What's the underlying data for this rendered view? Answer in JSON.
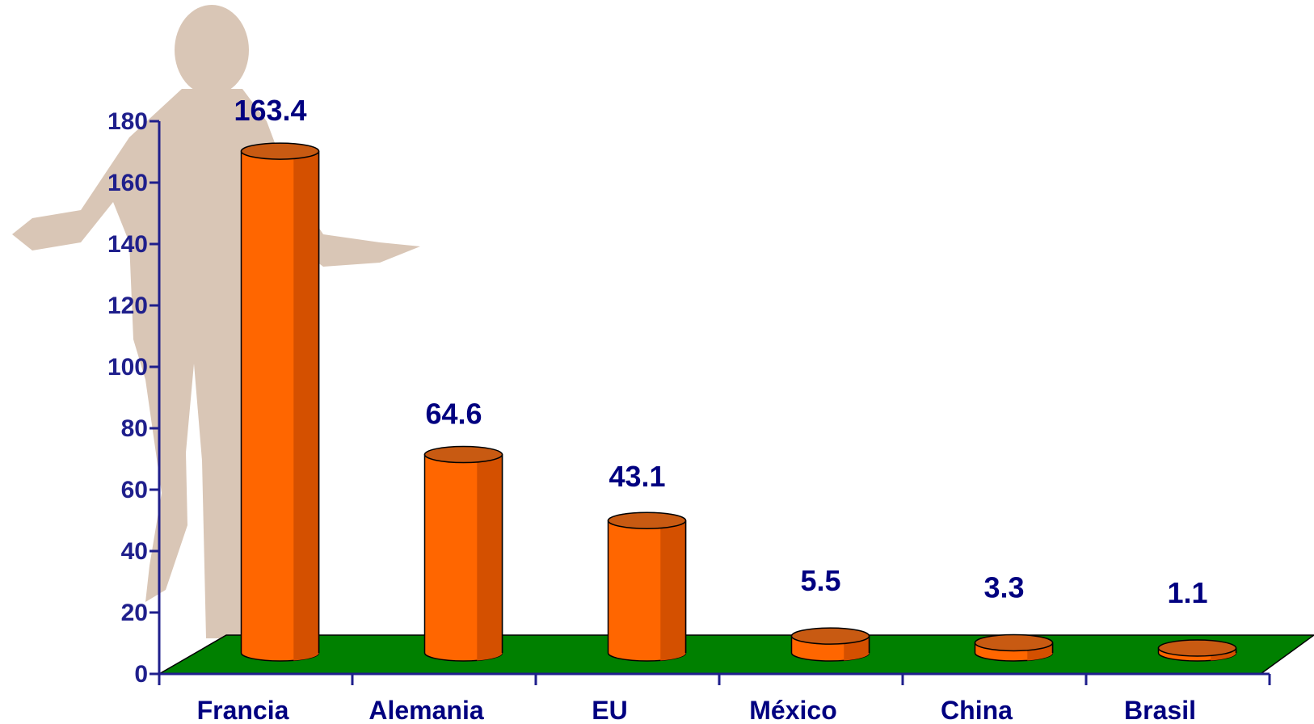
{
  "chart_data": {
    "type": "bar",
    "categories": [
      "Francia",
      "Alemania",
      "EU",
      "México",
      "China",
      "Brasil"
    ],
    "values": [
      163.4,
      64.6,
      43.1,
      5.5,
      3.3,
      1.1
    ],
    "data_labels": [
      "163.4",
      "64.6",
      "43.1",
      "5.5",
      "3.3",
      "1.1"
    ],
    "y_ticks": [
      "0",
      "20",
      "40",
      "60",
      "80",
      "100",
      "120",
      "140",
      "160",
      "180"
    ],
    "ylim": [
      0,
      180
    ],
    "title": "",
    "xlabel": "",
    "ylabel": "",
    "grid": false,
    "legend": "none",
    "bar_style": "3d-cylinder",
    "colors": {
      "bar_front": "#ff6600",
      "bar_shade": "#d45000",
      "bar_top": "#c85a12",
      "floor": "#008000",
      "axis": "#1f1f8c",
      "labels": "#000080",
      "silhouette": "#d9c6b6"
    }
  }
}
